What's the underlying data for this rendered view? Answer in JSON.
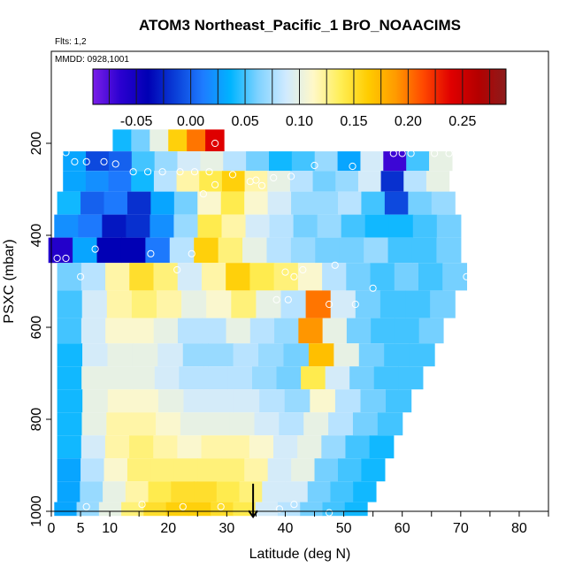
{
  "chart_data": {
    "type": "heatmap",
    "title": "ATOM3 Northeast_Pacific_1 BrO_NOAACIMS",
    "flights_label": "Flts: 1,2",
    "dates_label": "MMDD: 0928,1001",
    "xlabel": "Latitude (deg N)",
    "ylabel": "PSXC (mbar)",
    "xlim": [
      0,
      85
    ],
    "ylim": [
      1000,
      0
    ],
    "x_ticks": [
      0,
      5,
      10,
      20,
      30,
      40,
      50,
      60,
      70,
      80
    ],
    "y_ticks": [
      200,
      400,
      600,
      800,
      1000
    ],
    "colorbar": {
      "range": [
        -0.09,
        0.29
      ],
      "tick_values": [
        -0.05,
        0.0,
        0.05,
        0.1,
        0.15,
        0.2,
        0.25
      ],
      "tick_labels": [
        "-0.05",
        "0.00",
        "0.05",
        "0.10",
        "0.15",
        "0.20",
        "0.25"
      ],
      "colors": [
        "#7a1ee8",
        "#2b00d0",
        "#0000b4",
        "#0a3fd8",
        "#1e7cff",
        "#00b4ff",
        "#7fd2ff",
        "#cfeaff",
        "#fff8c8",
        "#ffee55",
        "#ffcc00",
        "#ff9a00",
        "#ff4800",
        "#e00000",
        "#b40000",
        "#8b1c1c"
      ]
    },
    "layers": [
      {
        "p": 195,
        "lat": [
          10.5,
          29.5
        ],
        "v": [
          0.04,
          0.06,
          0.1,
          0.16,
          0.2,
          0.24
        ]
      },
      {
        "p": 240,
        "lat": [
          2.0,
          68.5
        ],
        "v": [
          0.03,
          -0.01,
          0.0,
          0.05,
          0.07,
          0.09,
          0.1,
          0.08,
          0.06,
          0.04,
          0.05,
          0.07,
          0.03,
          0.09,
          -0.07,
          0.05,
          0.1
        ]
      },
      {
        "p": 280,
        "lat": [
          2.0,
          68.0
        ],
        "v": [
          0.03,
          0.02,
          0.01,
          0.04,
          0.08,
          0.12,
          0.14,
          0.16,
          0.12,
          0.1,
          0.08,
          0.06,
          0.07,
          0.09,
          -0.02,
          0.08,
          0.1
        ]
      },
      {
        "p": 330,
        "lat": [
          1.0,
          69.0
        ],
        "v": [
          0.04,
          0.0,
          0.01,
          -0.02,
          0.03,
          0.06,
          0.11,
          0.14,
          0.11,
          0.09,
          0.07,
          0.07,
          0.08,
          0.05,
          -0.01,
          0.06,
          0.07
        ]
      },
      {
        "p": 380,
        "lat": [
          0.5,
          70.0
        ],
        "v": [
          0.02,
          0.01,
          -0.03,
          -0.02,
          0.02,
          0.07,
          0.14,
          0.12,
          0.09,
          0.08,
          0.06,
          0.07,
          0.05,
          0.04,
          0.04,
          0.05,
          0.06
        ]
      },
      {
        "p": 430,
        "lat": [
          -0.5,
          70.0
        ],
        "v": [
          -0.06,
          0.03,
          -0.04,
          -0.04,
          0.01,
          0.08,
          0.16,
          0.13,
          0.1,
          0.08,
          0.07,
          0.06,
          0.06,
          0.07,
          0.05,
          0.05,
          0.06
        ]
      },
      {
        "p": 490,
        "lat": [
          1.0,
          71.0
        ],
        "v": [
          0.06,
          0.08,
          0.12,
          0.15,
          0.13,
          0.09,
          0.12,
          0.16,
          0.14,
          0.13,
          0.11,
          0.08,
          0.06,
          0.05,
          0.06,
          0.05,
          0.06
        ]
      },
      {
        "p": 550,
        "lat": [
          1.0,
          69.0
        ],
        "v": [
          0.05,
          0.09,
          0.12,
          0.13,
          0.12,
          0.1,
          0.11,
          0.13,
          0.1,
          0.08,
          0.2,
          0.09,
          0.06,
          0.05,
          0.05,
          0.06
        ]
      },
      {
        "p": 610,
        "lat": [
          1.0,
          67.0
        ],
        "v": [
          0.05,
          0.09,
          0.11,
          0.11,
          0.1,
          0.08,
          0.08,
          0.1,
          0.08,
          0.07,
          0.19,
          0.1,
          0.06,
          0.05,
          0.05,
          0.06
        ]
      },
      {
        "p": 660,
        "lat": [
          1.0,
          65.5
        ],
        "v": [
          0.04,
          0.09,
          0.1,
          0.1,
          0.09,
          0.07,
          0.07,
          0.08,
          0.07,
          0.06,
          0.17,
          0.1,
          0.06,
          0.05,
          0.05
        ]
      },
      {
        "p": 710,
        "lat": [
          1.0,
          63.5
        ],
        "v": [
          0.04,
          0.1,
          0.1,
          0.1,
          0.09,
          0.08,
          0.08,
          0.08,
          0.07,
          0.06,
          0.14,
          0.09,
          0.06,
          0.05,
          0.05
        ]
      },
      {
        "p": 760,
        "lat": [
          1.0,
          61.5
        ],
        "v": [
          0.04,
          0.1,
          0.11,
          0.11,
          0.1,
          0.09,
          0.09,
          0.09,
          0.08,
          0.07,
          0.11,
          0.08,
          0.06,
          0.05
        ]
      },
      {
        "p": 810,
        "lat": [
          1.0,
          60.0
        ],
        "v": [
          0.04,
          0.1,
          0.12,
          0.12,
          0.11,
          0.1,
          0.1,
          0.1,
          0.09,
          0.08,
          0.1,
          0.08,
          0.06,
          0.05
        ]
      },
      {
        "p": 860,
        "lat": [
          1.0,
          58.5
        ],
        "v": [
          0.04,
          0.09,
          0.12,
          0.13,
          0.12,
          0.11,
          0.12,
          0.12,
          0.11,
          0.09,
          0.1,
          0.07,
          0.05,
          0.04
        ]
      },
      {
        "p": 910,
        "lat": [
          1.0,
          57.0
        ],
        "v": [
          0.03,
          0.08,
          0.11,
          0.13,
          0.13,
          0.13,
          0.13,
          0.13,
          0.12,
          0.09,
          0.1,
          0.06,
          0.05,
          0.04
        ]
      },
      {
        "p": 960,
        "lat": [
          1.0,
          55.5
        ],
        "v": [
          0.03,
          0.07,
          0.1,
          0.12,
          0.14,
          0.15,
          0.15,
          0.14,
          0.13,
          0.09,
          0.09,
          0.06,
          0.05,
          0.04
        ]
      },
      {
        "p": 1000,
        "lat": [
          0.5,
          54.0
        ],
        "v": [
          0.03,
          0.07,
          0.1,
          0.13,
          0.15,
          0.16,
          0.16,
          0.15,
          0.14,
          0.09,
          0.08,
          0.06,
          0.05,
          0.04
        ]
      }
    ],
    "markers": [
      {
        "x": 2.5,
        "y": 220
      },
      {
        "x": 4,
        "y": 240
      },
      {
        "x": 6,
        "y": 240
      },
      {
        "x": 9,
        "y": 240
      },
      {
        "x": 11,
        "y": 245
      },
      {
        "x": 14,
        "y": 262
      },
      {
        "x": 16.5,
        "y": 262
      },
      {
        "x": 19,
        "y": 262
      },
      {
        "x": 22,
        "y": 262
      },
      {
        "x": 24.5,
        "y": 262
      },
      {
        "x": 27,
        "y": 262
      },
      {
        "x": 31,
        "y": 268
      },
      {
        "x": 34,
        "y": 283
      },
      {
        "x": 36,
        "y": 292
      },
      {
        "x": 38,
        "y": 275
      },
      {
        "x": 41,
        "y": 272
      },
      {
        "x": 45,
        "y": 248
      },
      {
        "x": 51.5,
        "y": 250
      },
      {
        "x": 58.5,
        "y": 222
      },
      {
        "x": 60,
        "y": 222
      },
      {
        "x": 61.5,
        "y": 222
      },
      {
        "x": 65.5,
        "y": 222
      },
      {
        "x": 68,
        "y": 222
      },
      {
        "x": 35,
        "y": 280
      },
      {
        "x": 28,
        "y": 200
      },
      {
        "x": 26,
        "y": 310
      },
      {
        "x": 28,
        "y": 290
      },
      {
        "x": 1,
        "y": 450
      },
      {
        "x": 2.5,
        "y": 450
      },
      {
        "x": 7.5,
        "y": 430
      },
      {
        "x": 17,
        "y": 440
      },
      {
        "x": 24,
        "y": 440
      },
      {
        "x": 21.5,
        "y": 475
      },
      {
        "x": 5,
        "y": 490
      },
      {
        "x": 40,
        "y": 480
      },
      {
        "x": 41.5,
        "y": 490
      },
      {
        "x": 43,
        "y": 475
      },
      {
        "x": 48.5,
        "y": 465
      },
      {
        "x": 38.5,
        "y": 540
      },
      {
        "x": 40.5,
        "y": 540
      },
      {
        "x": 47.5,
        "y": 550
      },
      {
        "x": 52,
        "y": 550
      },
      {
        "x": 55,
        "y": 515
      },
      {
        "x": 71,
        "y": 490
      },
      {
        "x": 6,
        "y": 990
      },
      {
        "x": 15.5,
        "y": 985
      },
      {
        "x": 22.5,
        "y": 990
      },
      {
        "x": 29,
        "y": 990
      },
      {
        "x": 39,
        "y": 995
      },
      {
        "x": 41.5,
        "y": 985
      },
      {
        "x": 47.5,
        "y": 1003
      }
    ],
    "arrow": {
      "x": 34.5,
      "y_from": 940,
      "y_to": 1012
    }
  }
}
